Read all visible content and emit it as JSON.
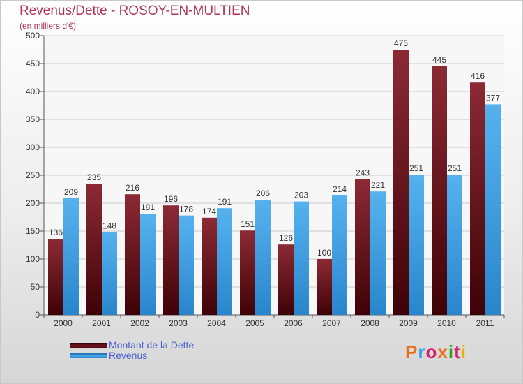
{
  "chart_data": {
    "type": "bar",
    "title": "Revenus/Dette - ROSOY-EN-MULTIEN",
    "subtitle": "(en milliers d'€)",
    "categories": [
      "2000",
      "2001",
      "2002",
      "2003",
      "2004",
      "2005",
      "2006",
      "2007",
      "2008",
      "2009",
      "2010",
      "2011"
    ],
    "series": [
      {
        "name": "Montant de la Dette",
        "color": "#7a1420",
        "values": [
          136,
          235,
          216,
          196,
          174,
          151,
          126,
          100,
          243,
          475,
          445,
          416
        ]
      },
      {
        "name": "Revenus",
        "color": "#3b9ae1",
        "values": [
          209,
          148,
          181,
          178,
          191,
          206,
          203,
          214,
          221,
          251,
          251,
          377
        ]
      }
    ],
    "ylim": [
      0,
      500
    ],
    "yticks": [
      0,
      50,
      100,
      150,
      200,
      250,
      300,
      350,
      400,
      450,
      500
    ],
    "grid": true,
    "legend": "bottom-left"
  },
  "logo": {
    "text": "Proxiti"
  }
}
